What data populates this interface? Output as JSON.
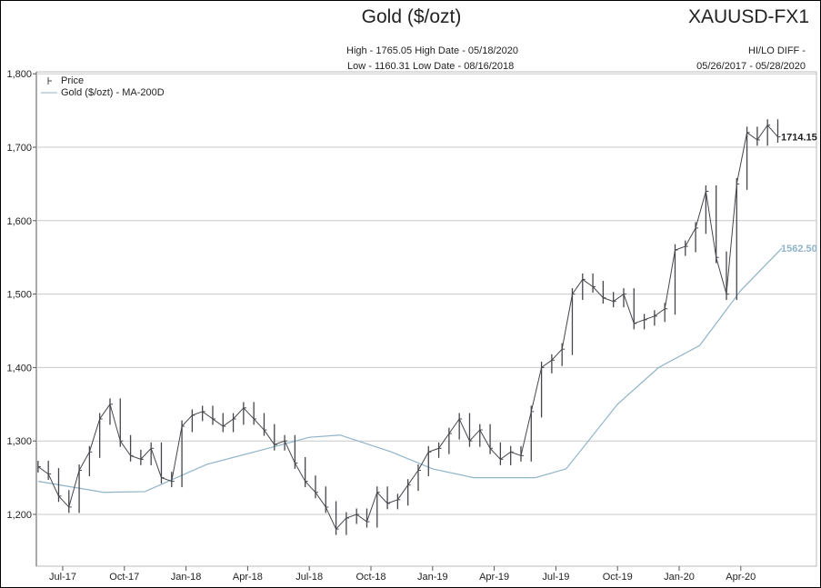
{
  "header": {
    "title": "Gold ($/ozt)",
    "symbol": "XAUUSD-FX1",
    "high_line": "High - 1765.05 High Date - 05/18/2020",
    "low_line": "Low - 1160.31 Low Date - 08/16/2018",
    "hilo_line": "HI/LO DIFF -",
    "range_line": "05/26/2017 - 05/28/2020"
  },
  "colors": {
    "price": "#44464c",
    "ma": "#8fb4c8",
    "grid": "#c8c8c8"
  },
  "chart_data": {
    "type": "line",
    "title": "Gold ($/ozt)",
    "ylim": [
      1140,
      1820
    ],
    "yticks": [
      1200,
      1300,
      1400,
      1500,
      1600,
      1700,
      1800
    ],
    "ytick_labels": [
      "1,200",
      "1,300",
      "1,400",
      "1,500",
      "1,600",
      "1,700",
      "1,800"
    ],
    "xtick_labels": [
      "Jul-17",
      "Oct-17",
      "Jan-18",
      "Apr-18",
      "Jul-18",
      "Oct-18",
      "Jan-19",
      "Apr-19",
      "Jul-19",
      "Oct-19",
      "Jan-20",
      "Apr-20"
    ],
    "xtick_months": [
      1,
      4,
      7,
      10,
      13,
      16,
      19,
      22,
      25,
      28,
      31,
      34
    ],
    "x_unit": "months since Jun-2017",
    "legend": [
      {
        "name": "Price",
        "marker": "ohlc"
      },
      {
        "name": "Gold ($/ozt) - MA-200D",
        "marker": "line"
      }
    ],
    "legend_position": "top-left",
    "series": [
      {
        "name": "Price",
        "x_step": 0.5,
        "x_start": -0.2,
        "values": [
          1265,
          1255,
          1225,
          1210,
          1260,
          1285,
          1330,
          1350,
          1300,
          1280,
          1275,
          1290,
          1250,
          1245,
          1320,
          1335,
          1340,
          1330,
          1320,
          1330,
          1345,
          1330,
          1315,
          1295,
          1300,
          1270,
          1245,
          1230,
          1210,
          1180,
          1195,
          1200,
          1190,
          1230,
          1215,
          1220,
          1240,
          1260,
          1285,
          1290,
          1310,
          1330,
          1300,
          1315,
          1290,
          1275,
          1285,
          1280,
          1340,
          1400,
          1410,
          1425,
          1500,
          1520,
          1510,
          1495,
          1490,
          1500,
          1460,
          1465,
          1470,
          1480,
          1560,
          1565,
          1590,
          1640,
          1550,
          1500,
          1650,
          1720,
          1710,
          1730,
          1714.15
        ]
      },
      {
        "name": "Gold ($/ozt) - MA-200D",
        "x": [
          -0.2,
          3,
          5,
          8,
          11,
          13,
          14.5,
          17,
          19,
          21,
          24,
          25.5,
          28,
          30,
          32,
          34,
          36
        ],
        "values": [
          1245,
          1230,
          1231,
          1268,
          1290,
          1305,
          1308,
          1285,
          1262,
          1250,
          1250,
          1262,
          1350,
          1400,
          1430,
          1505,
          1562.5
        ]
      }
    ],
    "last_labels": {
      "price": "1714.15",
      "ma": "1562.50"
    }
  }
}
